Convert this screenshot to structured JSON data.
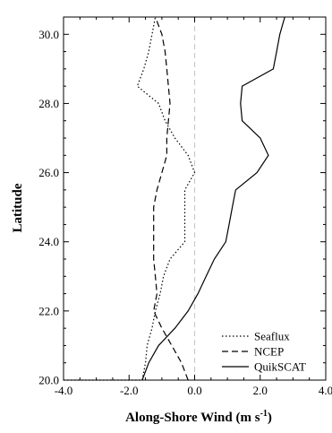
{
  "chart_data": {
    "type": "line",
    "xlabel": "Along-Shore Wind (m s",
    "xlabel_sup": "-1",
    "xlabel_close": ")",
    "ylabel": "Latitude",
    "xlim": [
      -4.0,
      4.0
    ],
    "ylim": [
      20.0,
      30.5
    ],
    "x_ticks": [
      -4.0,
      -2.0,
      0.0,
      2.0,
      4.0
    ],
    "x_tick_labels": [
      "-4.0",
      "-2.0",
      "0.0",
      "2.0",
      "4.0"
    ],
    "y_ticks": [
      20.0,
      22.0,
      24.0,
      26.0,
      28.0,
      30.0
    ],
    "y_tick_labels": [
      "20.0",
      "22.0",
      "24.0",
      "26.0",
      "28.0",
      "30.0"
    ],
    "zero_line": {
      "x": 0.0,
      "style": "dashed",
      "color": "#c8c8c8"
    },
    "legend_position": "bottom-right",
    "series": [
      {
        "name": "Seaflux",
        "style": "dotted",
        "points": [
          [
            -4.0,
            20.0
          ],
          [
            -1.6,
            20.0
          ],
          [
            -1.5,
            20.5
          ],
          [
            -1.45,
            21.0
          ],
          [
            -1.3,
            21.5
          ],
          [
            -1.2,
            22.0
          ],
          [
            -1.05,
            22.5
          ],
          [
            -0.95,
            23.0
          ],
          [
            -0.75,
            23.5
          ],
          [
            -0.3,
            24.0
          ],
          [
            -0.3,
            24.5
          ],
          [
            -0.3,
            25.0
          ],
          [
            -0.3,
            25.5
          ],
          [
            0.0,
            26.0
          ],
          [
            -0.2,
            26.5
          ],
          [
            -0.6,
            27.0
          ],
          [
            -0.9,
            27.5
          ],
          [
            -1.1,
            28.0
          ],
          [
            -1.75,
            28.5
          ],
          [
            -1.55,
            29.0
          ],
          [
            -1.4,
            29.5
          ],
          [
            -1.3,
            30.0
          ],
          [
            -1.2,
            30.5
          ]
        ]
      },
      {
        "name": "NCEP",
        "style": "dashed",
        "points": [
          [
            -0.2,
            20.0
          ],
          [
            -0.4,
            20.5
          ],
          [
            -0.7,
            21.0
          ],
          [
            -1.0,
            21.5
          ],
          [
            -1.25,
            22.0
          ],
          [
            -1.15,
            22.5
          ],
          [
            -1.2,
            23.0
          ],
          [
            -1.25,
            23.5
          ],
          [
            -1.25,
            24.0
          ],
          [
            -1.25,
            24.5
          ],
          [
            -1.25,
            25.0
          ],
          [
            -1.15,
            25.5
          ],
          [
            -1.0,
            26.0
          ],
          [
            -0.85,
            26.5
          ],
          [
            -0.85,
            27.0
          ],
          [
            -0.8,
            27.5
          ],
          [
            -0.75,
            28.0
          ],
          [
            -0.8,
            28.5
          ],
          [
            -0.85,
            29.0
          ],
          [
            -0.9,
            29.5
          ],
          [
            -1.0,
            30.0
          ],
          [
            -1.2,
            30.5
          ]
        ]
      },
      {
        "name": "QuikSCAT",
        "style": "solid",
        "points": [
          [
            -1.6,
            20.0
          ],
          [
            -1.4,
            20.5
          ],
          [
            -1.1,
            21.0
          ],
          [
            -0.6,
            21.5
          ],
          [
            -0.2,
            22.0
          ],
          [
            0.1,
            22.5
          ],
          [
            0.35,
            23.0
          ],
          [
            0.6,
            23.5
          ],
          [
            0.95,
            24.0
          ],
          [
            1.05,
            24.5
          ],
          [
            1.15,
            25.0
          ],
          [
            1.25,
            25.5
          ],
          [
            1.9,
            26.0
          ],
          [
            2.25,
            26.5
          ],
          [
            2.0,
            27.0
          ],
          [
            1.45,
            27.5
          ],
          [
            1.4,
            28.0
          ],
          [
            1.45,
            28.5
          ],
          [
            2.4,
            29.0
          ],
          [
            2.5,
            29.5
          ],
          [
            2.6,
            30.0
          ],
          [
            2.75,
            30.5
          ]
        ]
      }
    ]
  }
}
